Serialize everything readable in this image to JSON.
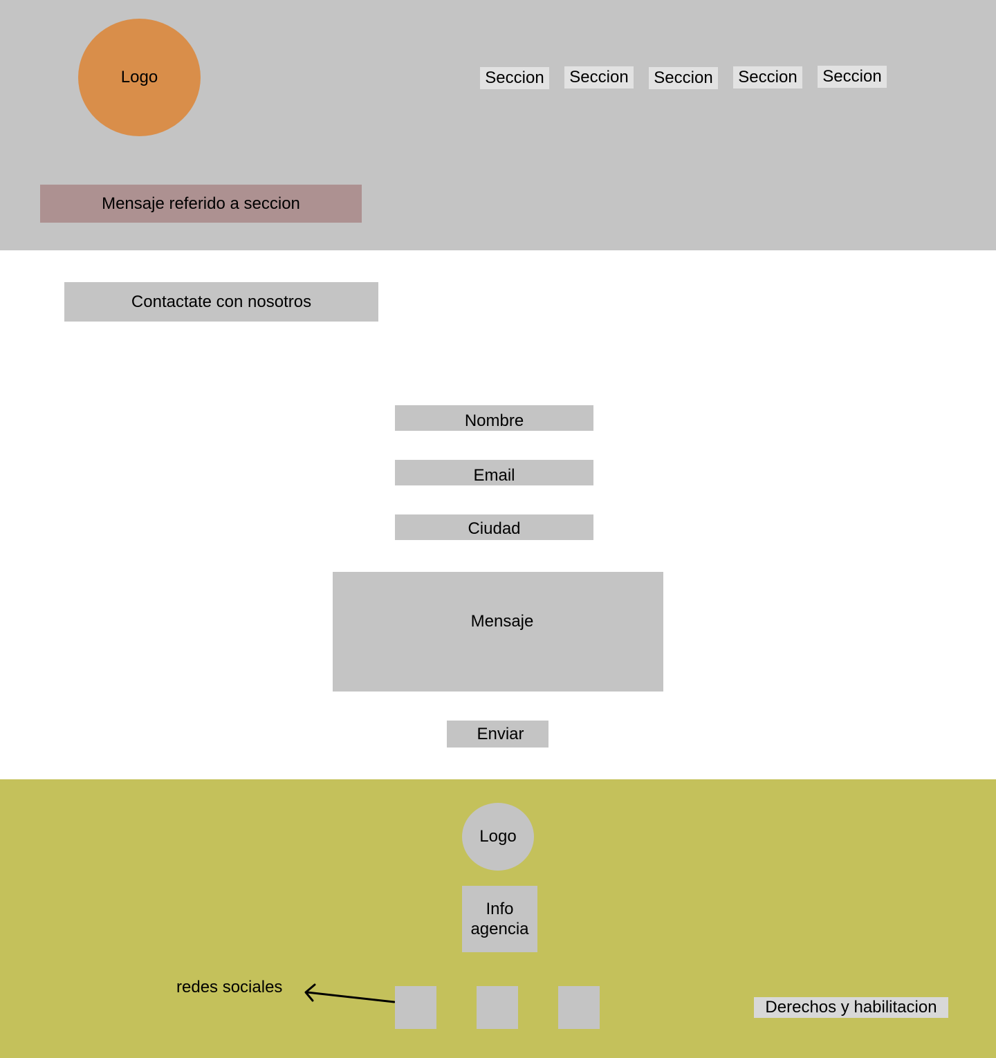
{
  "header": {
    "logo_label": "Logo",
    "nav": [
      "Seccion",
      "Seccion",
      "Seccion",
      "Seccion",
      "Seccion"
    ],
    "section_message": "Mensaje referido a seccion"
  },
  "main": {
    "contact_heading": "Contactate con nosotros",
    "form": {
      "name_placeholder": "Nombre",
      "email_placeholder": "Email",
      "city_placeholder": "Ciudad",
      "message_placeholder": "Mensaje",
      "submit_label": "Enviar"
    }
  },
  "footer": {
    "logo_label": "Logo",
    "info_line1": "Info",
    "info_line2": "agencia",
    "social_label": "redes sociales",
    "rights": "Derechos y habilitacion"
  },
  "colors": {
    "header_bg": "#c4c4c4",
    "logo_orange": "#d98e4a",
    "section_message_bg": "#ad9191",
    "footer_bg": "#c4c15b",
    "placeholder_gray": "#c4c4c4"
  }
}
